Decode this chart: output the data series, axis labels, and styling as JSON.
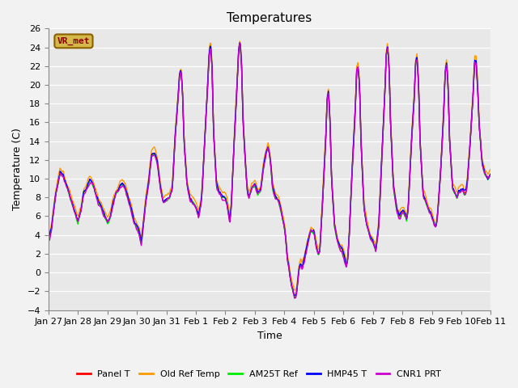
{
  "title": "Temperatures",
  "ylabel": "Temperature (C)",
  "xlabel": "Time",
  "ylim": [
    -4,
    26
  ],
  "yticks": [
    -4,
    -2,
    0,
    2,
    4,
    6,
    8,
    10,
    12,
    14,
    16,
    18,
    20,
    22,
    24,
    26
  ],
  "background_color": "#e8e8e8",
  "plot_bg_color": "#e8e8e8",
  "annotation_text": "VR_met",
  "annotation_color": "#8b0000",
  "annotation_bg": "#d4b84a",
  "series": [
    {
      "label": "Panel T",
      "color": "#ff0000",
      "lw": 1.0
    },
    {
      "label": "Old Ref Temp",
      "color": "#ff9900",
      "lw": 1.0
    },
    {
      "label": "AM25T Ref",
      "color": "#00ee00",
      "lw": 1.0
    },
    {
      "label": "HMP45 T",
      "color": "#0000ff",
      "lw": 1.0
    },
    {
      "label": "CNR1 PRT",
      "color": "#cc00cc",
      "lw": 1.0
    }
  ],
  "x_tick_labels": [
    "Jan 27",
    "Jan 28",
    "Jan 29",
    "Jan 30",
    "Jan 31",
    "Feb 1",
    "Feb 2",
    "Feb 3",
    "Feb 4",
    "Feb 5",
    "Feb 6",
    "Feb 7",
    "Feb 8",
    "Feb 9",
    "Feb 10",
    "Feb 11"
  ],
  "title_fontsize": 11,
  "label_fontsize": 9,
  "tick_fontsize": 8
}
